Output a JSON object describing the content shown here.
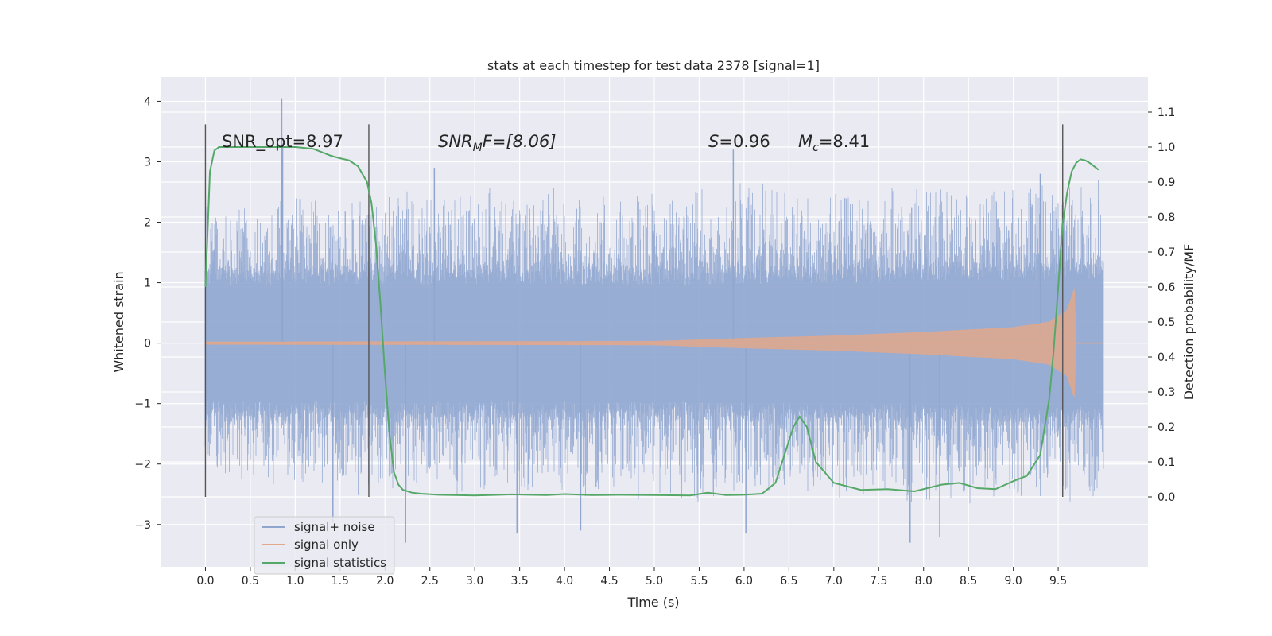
{
  "chart_data": {
    "type": "line",
    "title": "stats at each timestep for test data 2378 [signal=1]",
    "xlabel": "Time (s)",
    "ylabel": "Whitened strain",
    "y2label": "Detection probability/MF",
    "xlim": [
      -0.5,
      10.5
    ],
    "ylim": [
      -3.7,
      4.4
    ],
    "y2lim": [
      -0.2,
      1.2
    ],
    "xticks": [
      0.0,
      0.5,
      1.0,
      1.5,
      2.0,
      2.5,
      3.0,
      3.5,
      4.0,
      4.5,
      5.0,
      5.5,
      6.0,
      6.5,
      7.0,
      7.5,
      8.0,
      8.5,
      9.0,
      9.5
    ],
    "xtick_labels": [
      "0.0",
      "0.5",
      "1.0",
      "1.5",
      "2.0",
      "2.5",
      "3.0",
      "3.5",
      "4.0",
      "4.5",
      "5.0",
      "5.5",
      "6.0",
      "6.5",
      "7.0",
      "7.5",
      "8.0",
      "8.5",
      "9.0",
      "9.5"
    ],
    "yticks": [
      -3,
      -2,
      -1,
      0,
      1,
      2,
      3,
      4
    ],
    "ytick_labels": [
      "−3",
      "−2",
      "−1",
      "0",
      "1",
      "2",
      "3",
      "4"
    ],
    "y2ticks": [
      0.0,
      0.1,
      0.2,
      0.3,
      0.4,
      0.5,
      0.6,
      0.7,
      0.8,
      0.9,
      1.0,
      1.1
    ],
    "y2tick_labels": [
      "0.0",
      "0.1",
      "0.2",
      "0.3",
      "0.4",
      "0.5",
      "0.6",
      "0.7",
      "0.8",
      "0.9",
      "1.0",
      "1.1"
    ],
    "grid": true,
    "legend_position": "lower-left",
    "annotations": {
      "snr_opt": "SNR_opt=8.97",
      "snr_mf_main": "SNR",
      "snr_mf_sub": "M",
      "snr_mf_rest": "F=[8.06]",
      "s_main": "S",
      "s_rest": "=0.96",
      "mc_main": "M",
      "mc_sub": "c",
      "mc_rest": "=8.41"
    },
    "vlines": [
      0.0,
      1.82,
      9.55
    ],
    "noise": {
      "t_start": 0.0,
      "t_end": 10.0,
      "envelope": [
        {
          "t": 0.0,
          "core": 1.1,
          "spike": 2.2
        },
        {
          "t": 1.8,
          "core": 1.1,
          "spike": 2.4
        },
        {
          "t": 5.0,
          "core": 1.1,
          "spike": 2.5
        },
        {
          "t": 10.0,
          "core": 1.2,
          "spike": 2.6
        }
      ],
      "spikes": [
        {
          "t": 0.85,
          "y": 4.05
        },
        {
          "t": 0.86,
          "y": 3.3
        },
        {
          "t": 1.42,
          "y": -2.95
        },
        {
          "t": 2.23,
          "y": -3.3
        },
        {
          "t": 3.47,
          "y": -3.15
        },
        {
          "t": 4.18,
          "y": -3.1
        },
        {
          "t": 5.88,
          "y": 3.2
        },
        {
          "t": 6.02,
          "y": -3.15
        },
        {
          "t": 7.85,
          "y": -3.3
        },
        {
          "t": 8.18,
          "y": -3.2
        },
        {
          "t": 2.55,
          "y": 2.9
        },
        {
          "t": 9.3,
          "y": 2.8
        }
      ]
    },
    "signal_only_envelope": [
      {
        "t": 0.0,
        "a": 0.02
      },
      {
        "t": 5.0,
        "a": 0.03
      },
      {
        "t": 6.0,
        "a": 0.08
      },
      {
        "t": 7.0,
        "a": 0.12
      },
      {
        "t": 8.0,
        "a": 0.18
      },
      {
        "t": 9.0,
        "a": 0.26
      },
      {
        "t": 9.4,
        "a": 0.35
      },
      {
        "t": 9.6,
        "a": 0.55
      },
      {
        "t": 9.68,
        "a": 0.9
      },
      {
        "t": 9.7,
        "a": 0.0
      },
      {
        "t": 10.0,
        "a": 0.0
      }
    ],
    "series": [
      {
        "name": "signal+ noise",
        "color": "#8fa6cf"
      },
      {
        "name": "signal only",
        "color": "#e1a88c"
      },
      {
        "name": "signal statistics",
        "color": "#55a868",
        "axis": "right",
        "x": [
          0.0,
          0.05,
          0.1,
          0.15,
          0.2,
          0.3,
          0.4,
          0.6,
          0.8,
          1.0,
          1.2,
          1.3,
          1.4,
          1.5,
          1.6,
          1.7,
          1.8,
          1.85,
          1.9,
          1.95,
          2.0,
          2.05,
          2.1,
          2.15,
          2.2,
          2.3,
          2.4,
          2.6,
          3.0,
          3.4,
          3.8,
          4.0,
          4.3,
          4.6,
          5.0,
          5.4,
          5.6,
          5.8,
          6.0,
          6.2,
          6.35,
          6.45,
          6.55,
          6.62,
          6.7,
          6.8,
          7.0,
          7.3,
          7.6,
          7.9,
          8.2,
          8.4,
          8.6,
          8.8,
          9.0,
          9.15,
          9.3,
          9.4,
          9.45,
          9.5,
          9.55,
          9.6,
          9.65,
          9.7,
          9.75,
          9.8,
          9.85,
          9.9,
          9.95
        ],
        "y": [
          0.6,
          0.93,
          0.99,
          1.0,
          1.0,
          1.0,
          1.0,
          1.0,
          1.0,
          1.0,
          0.995,
          0.985,
          0.975,
          0.968,
          0.962,
          0.945,
          0.9,
          0.84,
          0.72,
          0.55,
          0.35,
          0.18,
          0.07,
          0.035,
          0.02,
          0.012,
          0.009,
          0.006,
          0.004,
          0.007,
          0.005,
          0.008,
          0.005,
          0.006,
          0.005,
          0.004,
          0.012,
          0.005,
          0.006,
          0.009,
          0.04,
          0.12,
          0.2,
          0.23,
          0.2,
          0.1,
          0.04,
          0.02,
          0.022,
          0.016,
          0.035,
          0.04,
          0.025,
          0.022,
          0.045,
          0.06,
          0.12,
          0.28,
          0.42,
          0.6,
          0.78,
          0.87,
          0.93,
          0.955,
          0.965,
          0.962,
          0.955,
          0.945,
          0.935
        ]
      }
    ]
  }
}
